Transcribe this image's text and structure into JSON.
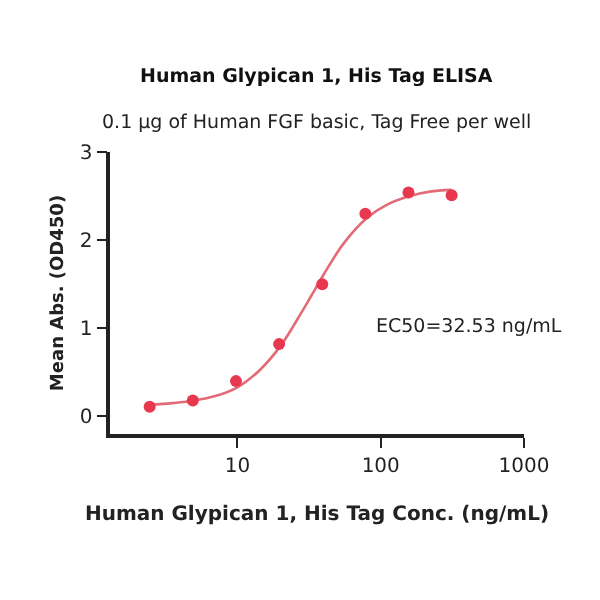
{
  "chart_data": {
    "type": "scatter",
    "title": "Human Glypican 1, His Tag ELISA",
    "subtitle": "0.1 µg of Human FGF basic, Tag Free per well",
    "xlabel": "Human Glypican 1, His Tag Conc. (ng/mL)",
    "ylabel": "Mean Abs. (OD450)",
    "series": [
      {
        "type": "line",
        "color": "#e36b78",
        "x": [
          2.44,
          3.5,
          5,
          7,
          10,
          14,
          20,
          28,
          32.53,
          40,
          55,
          80,
          110,
          160,
          220,
          312.5
        ],
        "values": [
          0.13,
          0.15,
          0.18,
          0.23,
          0.33,
          0.51,
          0.8,
          1.18,
          1.36,
          1.61,
          1.96,
          2.25,
          2.4,
          2.5,
          2.55,
          2.57
        ],
        "marker": "none",
        "line_style": "solid"
      },
      {
        "color": "#e8384f",
        "x": [
          2.44,
          4.88,
          9.77,
          19.53,
          39.06,
          78.13,
          156.25,
          312.5
        ],
        "values": [
          0.11,
          0.18,
          0.4,
          0.82,
          1.5,
          2.3,
          2.54,
          2.51
        ],
        "marker": "circle"
      }
    ],
    "annotations": [
      "EC50=32.53 ng/mL"
    ],
    "log": "x",
    "xlim": [
      1.29,
      1000
    ],
    "xticks": [
      10,
      100,
      1000
    ],
    "ylim": [
      -0.2,
      3
    ],
    "yticks": [
      0,
      1,
      2,
      3
    ]
  }
}
